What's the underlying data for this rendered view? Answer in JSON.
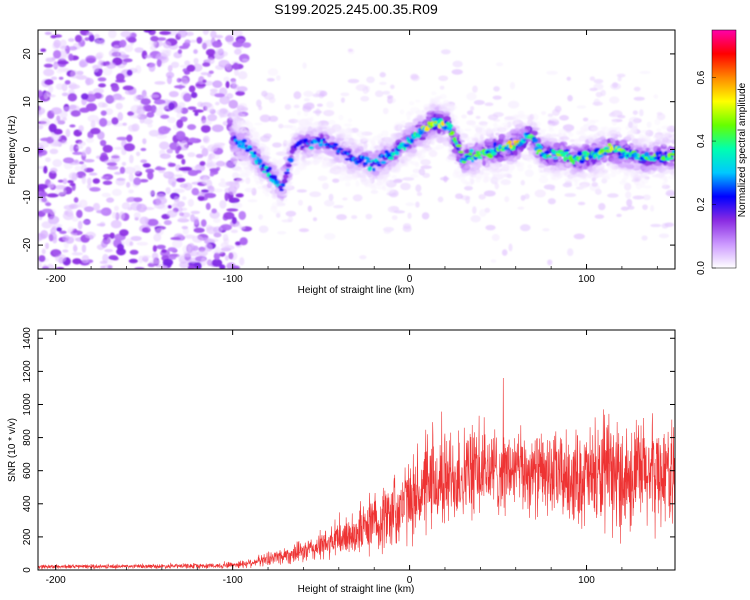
{
  "title": "S199.2025.245.00.35.R09",
  "spectrogram": {
    "type": "heatmap",
    "xlabel": "Height of straight line (km)",
    "ylabel": "Frequency (Hz)",
    "xlim": [
      -210,
      150
    ],
    "ylim": [
      -25,
      25
    ],
    "xticks": [
      -200,
      -100,
      0,
      100
    ],
    "yticks": [
      -20,
      -10,
      0,
      10,
      20
    ],
    "colorbar": {
      "label": "Normalized spectral amplitude",
      "range": [
        0,
        0.75
      ],
      "ticks": [
        "0.0",
        "0.2",
        "0.4",
        "0.6"
      ],
      "tick_values": [
        0,
        0.2,
        0.4,
        0.6
      ],
      "colors": [
        "#ffffff",
        "#cc99ff",
        "#8a2be2",
        "#0000ff",
        "#00c8ff",
        "#00ffb0",
        "#66ff00",
        "#ffff00",
        "#ff8800",
        "#ff0000",
        "#ff00aa"
      ]
    },
    "ridge": {
      "heights": [
        -100,
        -90,
        -80,
        -72,
        -65,
        -58,
        -50,
        -40,
        -30,
        -20,
        -10,
        0,
        8,
        15,
        22,
        30,
        40,
        50,
        60,
        68,
        75,
        85,
        95,
        105,
        115,
        125,
        135,
        150
      ],
      "frequencies": [
        2,
        0,
        -5,
        -8,
        1,
        1,
        2,
        0,
        -2,
        -3,
        -1,
        2,
        4,
        6,
        5,
        -2,
        -1,
        0,
        1,
        3,
        -1,
        -1,
        -2,
        -1,
        0,
        -1,
        -2,
        -1
      ],
      "peak_amplitudes": [
        0.3,
        0.35,
        0.4,
        0.35,
        0.3,
        0.35,
        0.35,
        0.3,
        0.35,
        0.4,
        0.4,
        0.45,
        0.55,
        0.7,
        0.5,
        0.5,
        0.5,
        0.6,
        0.65,
        0.55,
        0.5,
        0.55,
        0.55,
        0.55,
        0.55,
        0.55,
        0.5,
        0.5
      ]
    },
    "noise_region_x": [
      -210,
      -100
    ]
  },
  "snr": {
    "type": "line",
    "xlabel": "Height of straight line (km)",
    "ylabel": "SNR (10 * v/v)",
    "xlim": [
      -210,
      150
    ],
    "ylim": [
      0,
      1450
    ],
    "xticks": [
      -200,
      -100,
      0,
      100
    ],
    "yticks": [
      0,
      200,
      400,
      600,
      800,
      1000,
      1200,
      1400
    ],
    "color": "#ee3333",
    "envelope": {
      "x": [
        -210,
        -150,
        -110,
        -95,
        -85,
        -75,
        -60,
        -45,
        -30,
        -15,
        0,
        15,
        30,
        45,
        60,
        75,
        90,
        105,
        120,
        135,
        150
      ],
      "mean": [
        20,
        22,
        25,
        35,
        55,
        80,
        110,
        160,
        230,
        310,
        420,
        520,
        580,
        600,
        600,
        580,
        560,
        560,
        560,
        580,
        600
      ],
      "spread": [
        15,
        15,
        20,
        30,
        40,
        60,
        80,
        120,
        170,
        250,
        300,
        350,
        350,
        330,
        300,
        300,
        330,
        380,
        420,
        420,
        350
      ]
    }
  }
}
